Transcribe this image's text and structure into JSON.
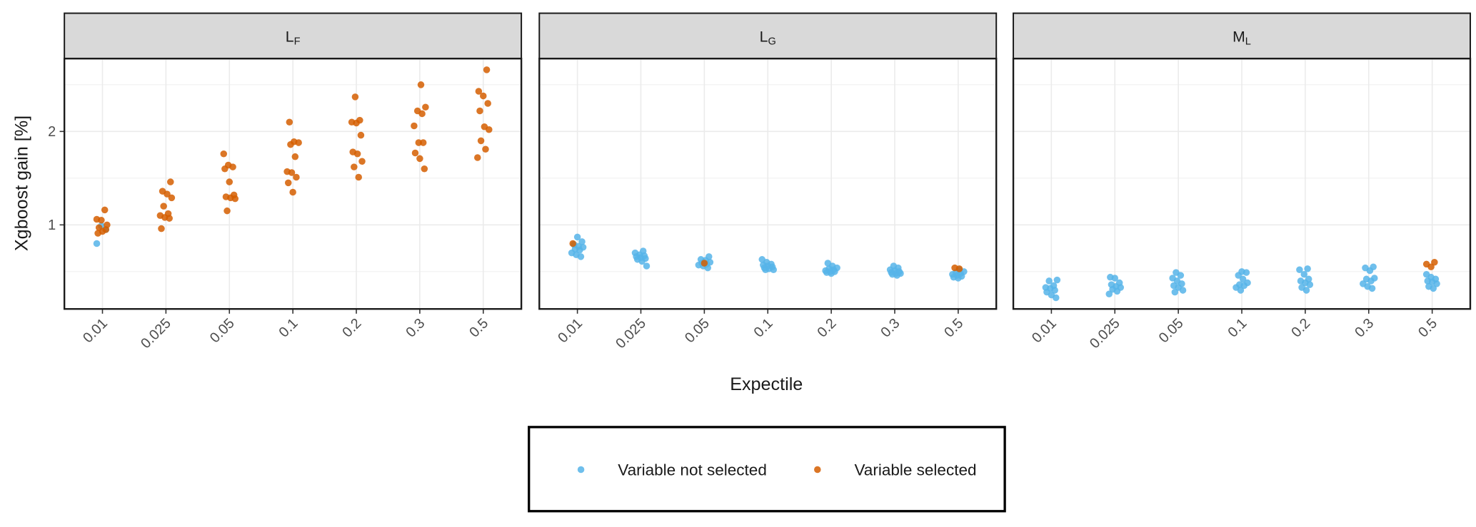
{
  "chart_data": [
    {
      "type": "scatter",
      "strip": {
        "main": "L",
        "sub": "F"
      },
      "categories": [
        "0.01",
        "0.025",
        "0.05",
        "0.1",
        "0.2",
        "0.3",
        "0.5"
      ],
      "ylim": [
        0.1,
        2.78
      ],
      "yticks": [
        1,
        2
      ],
      "grid": true,
      "series": [
        {
          "name": "Variable not selected",
          "color": "#56b4e9",
          "values": [
            [
              0.8,
              0.99,
              0.95
            ],
            [],
            [],
            [],
            [],
            [],
            []
          ]
        },
        {
          "name": "Variable selected",
          "color": "#d55e00",
          "values": [
            [
              1.16,
              1.06,
              1.05,
              0.95,
              0.91,
              0.93,
              1.0,
              0.97
            ],
            [
              1.46,
              1.36,
              1.33,
              1.29,
              1.2,
              1.12,
              1.1,
              1.08,
              1.07,
              0.96
            ],
            [
              1.76,
              1.64,
              1.62,
              1.6,
              1.46,
              1.32,
              1.3,
              1.29,
              1.28,
              1.15
            ],
            [
              2.1,
              1.89,
              1.88,
              1.86,
              1.73,
              1.57,
              1.56,
              1.51,
              1.45,
              1.35
            ],
            [
              2.37,
              2.12,
              2.1,
              2.09,
              1.96,
              1.78,
              1.76,
              1.68,
              1.62,
              1.51
            ],
            [
              2.5,
              2.26,
              2.22,
              2.19,
              2.06,
              1.88,
              1.88,
              1.77,
              1.71,
              1.6
            ],
            [
              2.66,
              2.43,
              2.38,
              2.3,
              2.22,
              2.05,
              2.02,
              1.9,
              1.81,
              1.72
            ]
          ]
        }
      ]
    },
    {
      "type": "scatter",
      "strip": {
        "main": "L",
        "sub": "G"
      },
      "categories": [
        "0.01",
        "0.025",
        "0.05",
        "0.1",
        "0.2",
        "0.3",
        "0.5"
      ],
      "ylim": [
        0.1,
        2.78
      ],
      "grid": true,
      "series": [
        {
          "name": "Variable not selected",
          "color": "#56b4e9",
          "values": [
            [
              0.87,
              0.82,
              0.79,
              0.77,
              0.76,
              0.74,
              0.73,
              0.7,
              0.68,
              0.66
            ],
            [
              0.72,
              0.7,
              0.68,
              0.67,
              0.66,
              0.65,
              0.64,
              0.63,
              0.61,
              0.56
            ],
            [
              0.66,
              0.63,
              0.62,
              0.6,
              0.59,
              0.58,
              0.57,
              0.56,
              0.54
            ],
            [
              0.63,
              0.6,
              0.58,
              0.57,
              0.56,
              0.55,
              0.54,
              0.53,
              0.52,
              0.52
            ],
            [
              0.59,
              0.56,
              0.54,
              0.53,
              0.52,
              0.51,
              0.5,
              0.5,
              0.49,
              0.48
            ],
            [
              0.56,
              0.54,
              0.52,
              0.51,
              0.5,
              0.49,
              0.48,
              0.48,
              0.47,
              0.46
            ],
            [
              0.52,
              0.5,
              0.49,
              0.48,
              0.47,
              0.46,
              0.45,
              0.44,
              0.43
            ]
          ]
        },
        {
          "name": "Variable selected",
          "color": "#d55e00",
          "values": [
            [
              0.8
            ],
            [],
            [
              0.59
            ],
            [],
            [],
            [],
            [
              0.54,
              0.53
            ]
          ]
        }
      ]
    },
    {
      "type": "scatter",
      "strip": {
        "main": "M",
        "sub": "L"
      },
      "categories": [
        "0.01",
        "0.025",
        "0.05",
        "0.1",
        "0.2",
        "0.3",
        "0.5"
      ],
      "ylim": [
        0.1,
        2.78
      ],
      "grid": true,
      "series": [
        {
          "name": "Variable not selected",
          "color": "#56b4e9",
          "values": [
            [
              0.41,
              0.4,
              0.35,
              0.33,
              0.32,
              0.3,
              0.28,
              0.25,
              0.22
            ],
            [
              0.44,
              0.43,
              0.38,
              0.36,
              0.34,
              0.33,
              0.31,
              0.29,
              0.26
            ],
            [
              0.49,
              0.46,
              0.43,
              0.4,
              0.37,
              0.35,
              0.33,
              0.3,
              0.28
            ],
            [
              0.5,
              0.49,
              0.46,
              0.42,
              0.38,
              0.36,
              0.35,
              0.33,
              0.3
            ],
            [
              0.53,
              0.52,
              0.47,
              0.42,
              0.4,
              0.38,
              0.36,
              0.33,
              0.3
            ],
            [
              0.55,
              0.54,
              0.51,
              0.43,
              0.42,
              0.4,
              0.37,
              0.34,
              0.32
            ],
            [
              0.47,
              0.44,
              0.42,
              0.4,
              0.39,
              0.37,
              0.34,
              0.32
            ]
          ]
        },
        {
          "name": "Variable selected",
          "color": "#d55e00",
          "values": [
            [],
            [],
            [],
            [],
            [],
            [],
            [
              0.6,
              0.58,
              0.55
            ]
          ]
        }
      ]
    }
  ],
  "x_label": "Expectile",
  "y_label": "Xgboost gain [%]"
}
